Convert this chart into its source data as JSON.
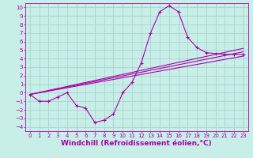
{
  "bg_color": "#c8eee8",
  "grid_color": "#aad4ce",
  "line_color": "#aa00aa",
  "xlabel": "Windchill (Refroidissement éolien,°C)",
  "xlabel_fontsize": 6.5,
  "xlim": [
    -0.5,
    23.5
  ],
  "ylim": [
    -4.5,
    10.5
  ],
  "xticks": [
    0,
    1,
    2,
    3,
    4,
    5,
    6,
    7,
    8,
    9,
    10,
    11,
    12,
    13,
    14,
    15,
    16,
    17,
    18,
    19,
    20,
    21,
    22,
    23
  ],
  "yticks": [
    -4,
    -3,
    -2,
    -1,
    0,
    1,
    2,
    3,
    4,
    5,
    6,
    7,
    8,
    9,
    10
  ],
  "tick_fontsize": 5.0,
  "series1_x": [
    0,
    1,
    2,
    3,
    4,
    5,
    6,
    7,
    8,
    9,
    10,
    11,
    12,
    13,
    14,
    15,
    16,
    17,
    18,
    19,
    20,
    21,
    22,
    23
  ],
  "series1_y": [
    -0.2,
    -1.0,
    -1.0,
    -0.5,
    0.0,
    -1.5,
    -1.8,
    -3.5,
    -3.2,
    -2.5,
    0.0,
    1.2,
    3.5,
    7.0,
    9.5,
    10.2,
    9.5,
    6.5,
    5.3,
    4.7,
    4.6,
    4.5,
    4.5,
    4.5
  ],
  "series2_x": [
    0,
    23
  ],
  "series2_y": [
    -0.2,
    4.8
  ],
  "series3_x": [
    0,
    23
  ],
  "series3_y": [
    -0.2,
    4.3
  ],
  "series4_x": [
    0,
    23
  ],
  "series4_y": [
    -0.2,
    5.2
  ]
}
